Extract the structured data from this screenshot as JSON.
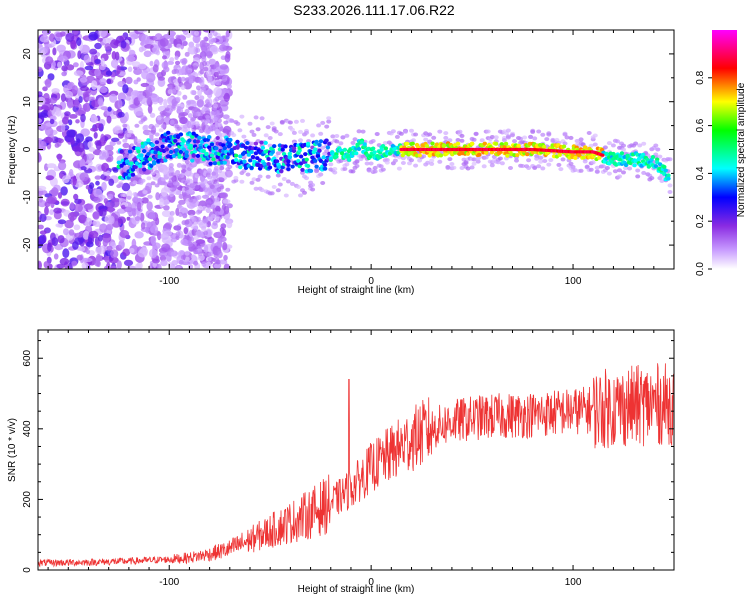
{
  "title": "S233.2026.111.17.06.R22",
  "chart_data": [
    {
      "type": "heatmap",
      "xlabel": "Height of straight line (km)",
      "ylabel": "Frequency (Hz)",
      "xlim": [
        -165,
        150
      ],
      "ylim": [
        -25,
        25
      ],
      "x_ticks": [
        -100,
        0,
        100
      ],
      "y_ticks": [
        -20,
        -10,
        0,
        10,
        20
      ],
      "colorbar": {
        "label": "Normalized spectral amplitude",
        "range": [
          0,
          1
        ],
        "ticks": [
          0.0,
          0.2,
          0.4,
          0.6,
          0.8
        ],
        "tick_labels": [
          "0.0",
          "0.2",
          "0.4",
          "0.6",
          "0.8"
        ],
        "colormap": [
          "#ffffff",
          "#c89bff",
          "#8a2be2",
          "#0000ff",
          "#00ffff",
          "#00ff00",
          "#ffff00",
          "#ff0000",
          "#ff00ff"
        ]
      },
      "ridge": {
        "description_points_x": [
          -120,
          -100,
          -80,
          -60,
          -40,
          -20,
          -10,
          -5,
          0,
          10,
          20,
          40,
          60,
          80,
          100,
          110,
          120,
          130,
          140,
          146
        ],
        "description_points_y": [
          -3,
          1,
          0,
          -1,
          -2,
          -1,
          -1,
          1,
          -1,
          0,
          0,
          0,
          0,
          0,
          -0.5,
          -0.5,
          -2,
          -2,
          -2.5,
          -5
        ],
        "peak_amplitude_range_x": [
          15,
          115
        ]
      }
    },
    {
      "type": "line",
      "xlabel": "Height of straight line (km)",
      "ylabel": "SNR (10 * v/v)",
      "xlim": [
        -165,
        150
      ],
      "ylim": [
        0,
        680
      ],
      "x_ticks": [
        -100,
        0,
        100
      ],
      "y_ticks": [
        0,
        200,
        400,
        600
      ],
      "color": "#ee3333",
      "trend_x": [
        -165,
        -140,
        -120,
        -100,
        -90,
        -80,
        -70,
        -60,
        -50,
        -40,
        -30,
        -20,
        -15,
        -10,
        -5,
        0,
        10,
        20,
        30,
        40,
        50,
        60,
        80,
        100,
        120,
        140,
        150
      ],
      "trend_y": [
        20,
        22,
        25,
        30,
        35,
        45,
        60,
        85,
        110,
        135,
        160,
        190,
        210,
        230,
        260,
        290,
        330,
        370,
        400,
        420,
        430,
        435,
        440,
        450,
        460,
        470,
        470
      ],
      "spike": {
        "x": -11,
        "y": 540
      }
    }
  ]
}
